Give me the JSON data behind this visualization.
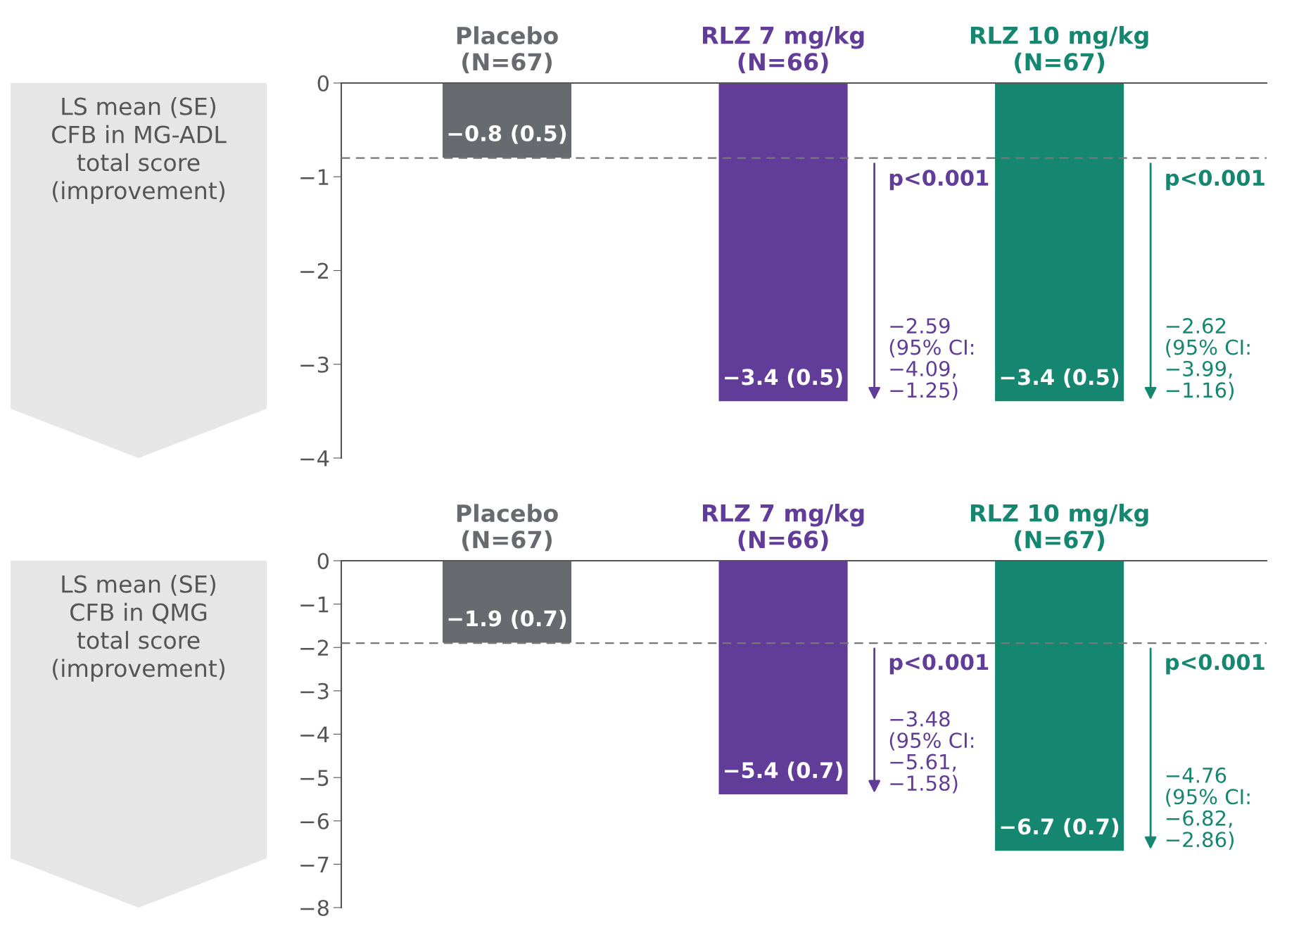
{
  "chart_data": [
    {
      "type": "bar",
      "ylabel": "LS mean (SE)\nCFB in MG-ADL\ntotal score\n(improvement)",
      "categories": [
        "Placebo\n(N=67)",
        "RLZ 7 mg/kg\n(N=66)",
        "RLZ 10 mg/kg\n(N=67)"
      ],
      "values": [
        -0.8,
        -3.4,
        -3.4
      ],
      "colors": [
        "#676b70",
        "#613d99",
        "#15866f"
      ],
      "value_labels": [
        "−0.8 (0.5)",
        "−3.4 (0.5)",
        "−3.4 (0.5)"
      ],
      "ylim": [
        -4,
        0
      ],
      "yticks": [
        0,
        {
          "value": -1,
          "label": "−1"
        },
        {
          "value": -2,
          "label": "−2"
        },
        {
          "value": -3,
          "label": "−3"
        },
        {
          "value": -4,
          "label": "−4"
        }
      ],
      "ref_lines": [
        {
          "axis": "y",
          "value": -0.8,
          "color": "#777777",
          "line_style": "dashed"
        }
      ],
      "annotations": [
        "p<0.001",
        "−2.59\n(95% CI:\n−4.09,\n−1.25)",
        "p<0.001",
        "−2.62\n(95% CI:\n−3.99,\n−1.16)"
      ],
      "grid": false,
      "legend": false
    },
    {
      "type": "bar",
      "ylabel": "LS mean (SE)\nCFB in QMG\ntotal score\n(improvement)",
      "categories": [
        "Placebo\n(N=67)",
        "RLZ 7 mg/kg\n(N=66)",
        "RLZ 10 mg/kg\n(N=67)"
      ],
      "values": [
        -1.9,
        -5.4,
        -6.7
      ],
      "colors": [
        "#676b70",
        "#613d99",
        "#15866f"
      ],
      "value_labels": [
        "−1.9 (0.7)",
        "−5.4 (0.7)",
        "−6.7 (0.7)"
      ],
      "ylim": [
        -8,
        0
      ],
      "yticks": [
        0,
        {
          "value": -1,
          "label": "−1"
        },
        {
          "value": -2,
          "label": "−2"
        },
        {
          "value": -3,
          "label": "−3"
        },
        {
          "value": -4,
          "label": "−4"
        },
        {
          "value": -5,
          "label": "−5"
        },
        {
          "value": -6,
          "label": "−6"
        },
        {
          "value": -7,
          "label": "−7"
        },
        {
          "value": -8,
          "label": "−8"
        }
      ],
      "ref_lines": [
        {
          "axis": "y",
          "value": -1.9,
          "color": "#777777",
          "line_style": "dashed"
        }
      ],
      "annotations": [
        "p<0.001",
        "−3.48\n(95% CI:\n−5.61,\n−1.58)",
        "p<0.001",
        "−4.76\n(95% CI:\n−6.82,\n−2.86)"
      ],
      "grid": false,
      "legend": false
    }
  ]
}
